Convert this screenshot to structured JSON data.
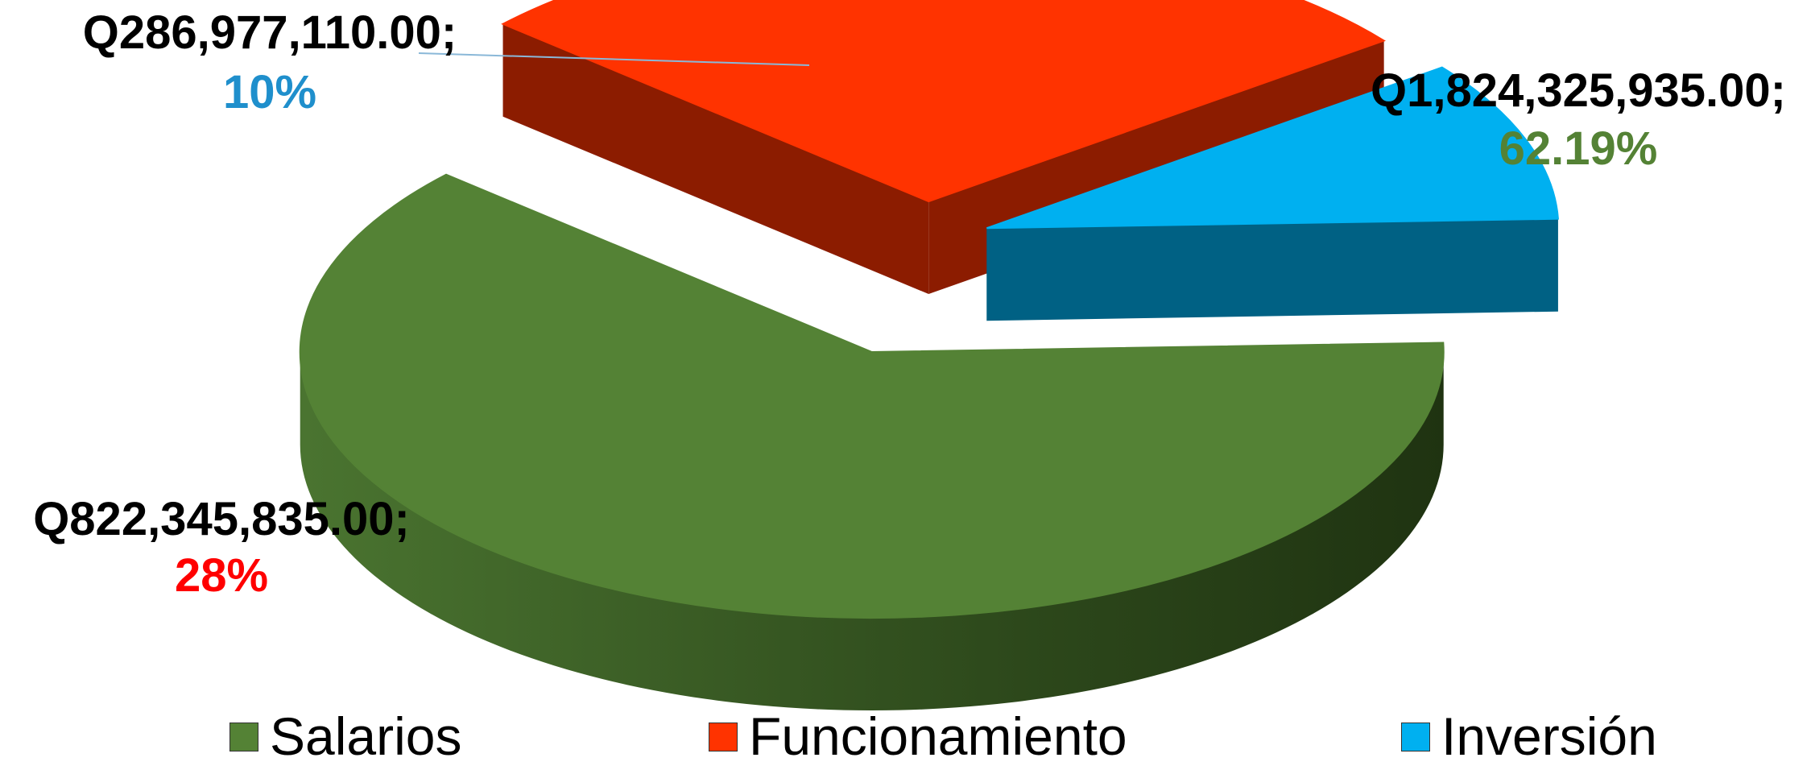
{
  "chart_data": {
    "type": "pie",
    "style": "3d-exploded",
    "categories": [
      "Salarios",
      "Funcionamiento",
      "Inversión"
    ],
    "values": [
      1824325935.0,
      822345835.0,
      286977110.0
    ],
    "value_labels": [
      "Q1,824,325,935.00;",
      "Q822,345,835.00;",
      "Q286,977,110.00;"
    ],
    "percent_labels": [
      "62.19%",
      "28%",
      "10%"
    ],
    "colors": [
      "#548235",
      "#FF3300",
      "#00B0F0"
    ],
    "percent_colors": [
      "#548235",
      "#FF0000",
      "#1F8FCC"
    ],
    "legend_position": "bottom",
    "title": ""
  },
  "legend": {
    "items": [
      {
        "label": "Salarios",
        "color": "#548235"
      },
      {
        "label": "Funcionamiento",
        "color": "#FF3300"
      },
      {
        "label": "Inversión",
        "color": "#00B0F0"
      }
    ]
  }
}
